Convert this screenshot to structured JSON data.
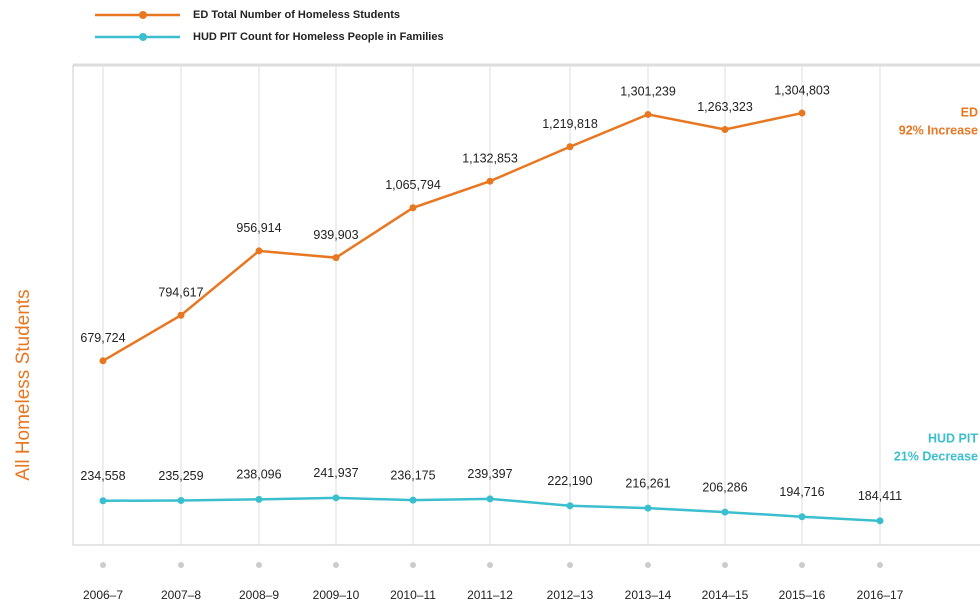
{
  "chart_data": {
    "type": "line",
    "y_label": "All Homeless Students",
    "categories": [
      "2006–7",
      "2007–8",
      "2008–9",
      "2009–10",
      "2010–11",
      "2011–12",
      "2012–13",
      "2013–14",
      "2014–15",
      "2015–16",
      "2016–17"
    ],
    "series": [
      {
        "name": "ED Total Number of Homeless Students",
        "color": "#e87722",
        "values": [
          679724,
          794617,
          956914,
          939903,
          1065794,
          1132853,
          1219818,
          1301239,
          1263323,
          1304803,
          null
        ],
        "value_labels": [
          "679,724",
          "794,617",
          "956,914",
          "939,903",
          "1,065,794",
          "1,132,853",
          "1,219,818",
          "1,301,239",
          "1,263,323",
          "1,304,803",
          null
        ]
      },
      {
        "name": "HUD PIT Count for Homeless People in Families",
        "color": "#3bbfce",
        "axis": "y2",
        "values": [
          234558,
          235259,
          238096,
          241937,
          236175,
          239397,
          222190,
          216261,
          206286,
          194716,
          184411
        ],
        "value_labels": [
          "234,558",
          "235,259",
          "238,096",
          "241,937",
          "236,175",
          "239,397",
          "222,190",
          "216,261",
          "206,286",
          "194,716",
          "184,411"
        ]
      }
    ],
    "annotations": [
      {
        "lines": [
          "ED",
          "92% Increase"
        ],
        "color": "#e87722"
      },
      {
        "lines": [
          "HUD PIT",
          "21% Decrease"
        ],
        "color": "#3bbfce"
      }
    ],
    "ylim": [
      215000,
      1426000
    ],
    "y2lim": [
      124000,
      1324000
    ],
    "grid": true
  }
}
